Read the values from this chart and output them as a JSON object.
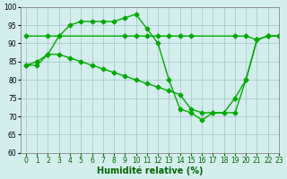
{
  "line1_x": [
    0,
    1,
    2,
    3,
    4,
    5,
    6,
    7,
    8,
    9,
    10,
    11,
    12,
    13,
    14,
    15,
    16,
    17,
    18,
    19,
    20,
    21,
    22,
    23
  ],
  "line1_y": [
    84,
    85,
    87,
    92,
    95,
    96,
    96,
    96,
    96,
    97,
    98,
    94,
    90,
    80,
    72,
    71,
    69,
    71,
    71,
    71,
    80,
    91,
    92,
    92
  ],
  "line2_x": [
    0,
    2,
    3,
    9,
    10,
    11,
    12,
    13,
    14,
    15,
    19,
    20,
    21,
    22,
    23
  ],
  "line2_y": [
    92,
    92,
    92,
    92,
    92,
    92,
    92,
    92,
    92,
    92,
    92,
    92,
    91,
    92,
    92
  ],
  "line3_x": [
    0,
    1,
    2,
    3,
    4,
    5,
    6,
    7,
    8,
    9,
    10,
    11,
    12,
    13,
    14,
    15,
    16,
    17,
    18,
    19,
    20,
    21,
    22,
    23
  ],
  "line3_y": [
    84,
    84,
    87,
    87,
    86,
    85,
    84,
    83,
    82,
    81,
    80,
    79,
    78,
    77,
    76,
    72,
    71,
    71,
    71,
    75,
    80,
    91,
    92,
    92
  ],
  "line_color": "#00aa00",
  "bg_color": "#d4eeed",
  "grid_color": "#a0c4c4",
  "xlabel": "Humidité relative (%)",
  "ylim": [
    60,
    100
  ],
  "xlim": [
    -0.5,
    23
  ],
  "yticks": [
    60,
    65,
    70,
    75,
    80,
    85,
    90,
    95,
    100
  ],
  "xticks": [
    0,
    1,
    2,
    3,
    4,
    5,
    6,
    7,
    8,
    9,
    10,
    11,
    12,
    13,
    14,
    15,
    16,
    17,
    18,
    19,
    20,
    21,
    22,
    23
  ],
  "marker": "D",
  "markersize": 2.5,
  "linewidth": 1.0,
  "xlabel_fontsize": 7,
  "tick_fontsize": 5.5
}
